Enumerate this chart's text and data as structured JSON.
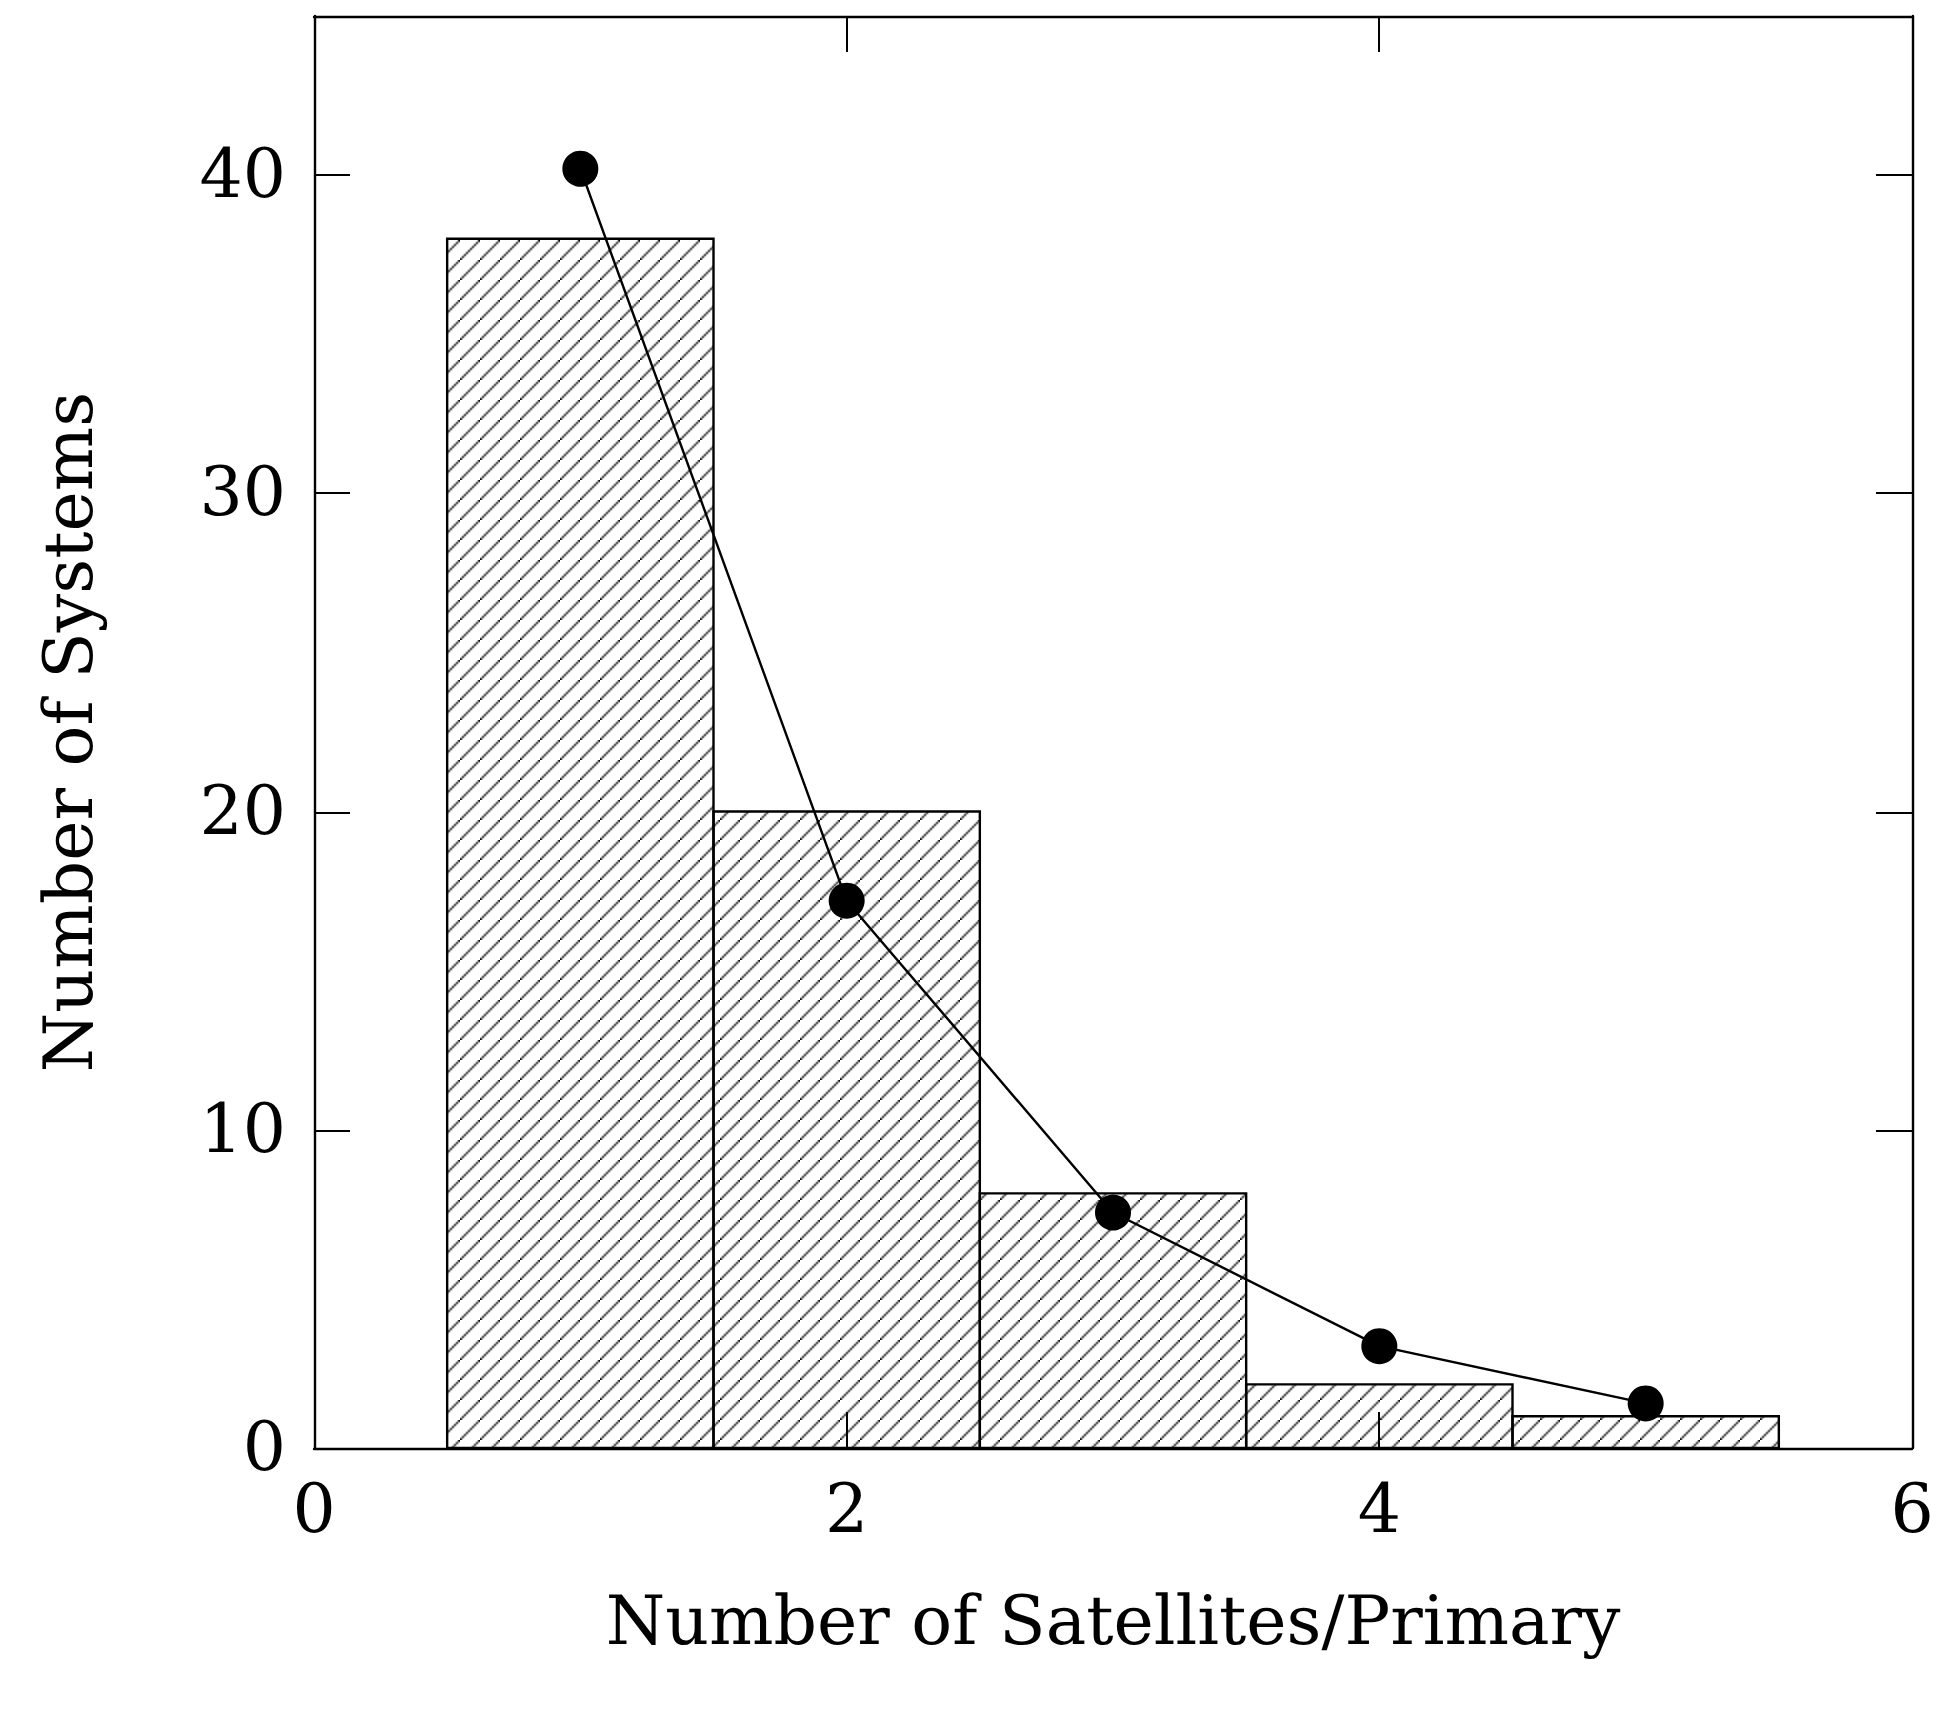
{
  "chart_data": {
    "type": "histogram",
    "xlabel": "Number of Satellites/Primary",
    "ylabel": "Number of Systems",
    "xlim": [
      0,
      6
    ],
    "xticks": [
      0,
      2,
      4,
      6
    ],
    "ylim": [
      0,
      45
    ],
    "yticks": [
      0,
      10,
      20,
      30,
      40
    ],
    "grid": false,
    "series": [
      {
        "color": "#000000",
        "bins": [
          0.5,
          1.5,
          2.5,
          3.5,
          4.5,
          5.5
        ],
        "values": [
          38,
          20,
          8,
          2,
          1
        ]
      },
      {
        "type": "line",
        "color": "#000000",
        "marker": "circle",
        "line_style": "solid",
        "x": [
          1,
          2,
          3,
          4,
          5
        ],
        "values": [
          40.2,
          17.2,
          7.4,
          3.2,
          1.4
        ]
      }
    ]
  }
}
